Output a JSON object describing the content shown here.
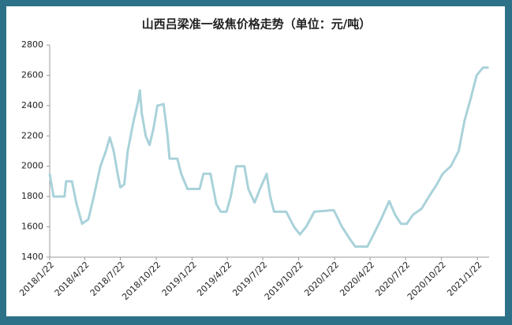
{
  "chart_data": {
    "type": "line",
    "title": "山西吕梁准一级焦价格走势（单位：元/吨）",
    "x": [
      "2018/1/22",
      "2018/2/1",
      "2018/3/1",
      "2018/3/5",
      "2018/3/20",
      "2018/4/1",
      "2018/4/15",
      "2018/5/1",
      "2018/5/15",
      "2018/6/1",
      "2018/6/15",
      "2018/6/25",
      "2018/7/5",
      "2018/7/15",
      "2018/7/22",
      "2018/8/1",
      "2018/8/10",
      "2018/8/25",
      "2018/9/5",
      "2018/9/10",
      "2018/9/15",
      "2018/9/25",
      "2018/10/5",
      "2018/10/15",
      "2018/10/25",
      "2018/11/10",
      "2018/11/20",
      "2018/11/25",
      "2018/12/15",
      "2018/12/25",
      "2019/1/10",
      "2019/2/10",
      "2019/2/20",
      "2019/3/10",
      "2019/3/25",
      "2019/4/5",
      "2019/4/20",
      "2019/5/1",
      "2019/5/15",
      "2019/6/5",
      "2019/6/15",
      "2019/7/1",
      "2019/7/15",
      "2019/8/1",
      "2019/8/10",
      "2019/8/20",
      "2019/9/20",
      "2019/10/10",
      "2019/10/25",
      "2019/11/10",
      "2019/12/1",
      "2020/1/20",
      "2020/2/10",
      "2020/3/1",
      "2020/3/15",
      "2020/4/15",
      "2020/5/1",
      "2020/5/20",
      "2020/6/10",
      "2020/6/25",
      "2020/7/10",
      "2020/7/25",
      "2020/8/10",
      "2020/9/1",
      "2020/9/20",
      "2020/10/10",
      "2020/10/25",
      "2020/11/15",
      "2020/12/5",
      "2020/12/20",
      "2021/1/5",
      "2021/1/20",
      "2021/2/5",
      "2021/2/20"
    ],
    "series": [
      {
        "name": "准一级焦",
        "color": "#a9d2da",
        "values": [
          1950,
          1800,
          1800,
          1900,
          1900,
          1750,
          1620,
          1650,
          1800,
          2000,
          2100,
          2190,
          2100,
          1950,
          1860,
          1880,
          2100,
          2300,
          2420,
          2500,
          2350,
          2200,
          2140,
          2250,
          2400,
          2410,
          2200,
          2050,
          2050,
          1950,
          1850,
          1850,
          1950,
          1950,
          1750,
          1700,
          1700,
          1800,
          2000,
          2000,
          1850,
          1760,
          1850,
          1950,
          1800,
          1700,
          1700,
          1600,
          1550,
          1600,
          1700,
          1710,
          1600,
          1520,
          1470,
          1470,
          1550,
          1650,
          1770,
          1680,
          1620,
          1620,
          1680,
          1720,
          1800,
          1880,
          1950,
          2000,
          2100,
          2300,
          2450,
          2600,
          2650,
          2650
        ]
      }
    ],
    "xlim": [
      "2018/1/22",
      "2021/2/21"
    ],
    "xticks": [
      "2018/1/22",
      "2018/4/22",
      "2018/7/22",
      "2018/10/22",
      "2019/1/22",
      "2019/4/22",
      "2019/7/22",
      "2019/10/22",
      "2020/1/22",
      "2020/4/22",
      "2020/7/22",
      "2020/10/22",
      "2021/1/22"
    ],
    "ylim": [
      1400,
      2800
    ],
    "yticks": [
      1400,
      1600,
      1800,
      2000,
      2200,
      2400,
      2600,
      2800
    ],
    "grid": false
  }
}
